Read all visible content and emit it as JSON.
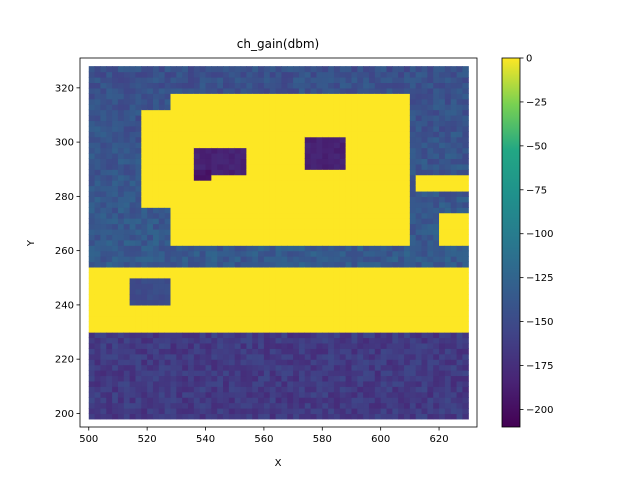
{
  "chart_data": {
    "type": "heatmap",
    "title": "ch_gain(dbm)",
    "xlabel": "X",
    "ylabel": "Y",
    "xlim": [
      497,
      633
    ],
    "ylim": [
      195,
      331
    ],
    "x_ticks": [
      500,
      520,
      540,
      560,
      580,
      600,
      620
    ],
    "y_ticks": [
      200,
      220,
      240,
      260,
      280,
      300,
      320
    ],
    "grid": false,
    "colorbar": {
      "colormap": "viridis",
      "min": -210,
      "max": 0,
      "ticks": [
        0,
        -25,
        -50,
        -75,
        -100,
        -125,
        -150,
        -175,
        -200
      ]
    },
    "grid_extent": {
      "x": [
        501,
        629
      ],
      "y": [
        199,
        327
      ]
    },
    "background_level": -140,
    "background_gradient": {
      "top": -145,
      "middle": -135,
      "bottom": -165
    },
    "regions": [
      {
        "label": "room-left",
        "value": -185,
        "x": [
          537,
          553
        ],
        "y": [
          288,
          298
        ]
      },
      {
        "label": "room-left-tail",
        "value": -195,
        "x": [
          536,
          541
        ],
        "y": [
          286,
          289
        ]
      },
      {
        "label": "room-right",
        "value": -185,
        "x": [
          575,
          588
        ],
        "y": [
          290,
          302
        ]
      },
      {
        "label": "low-pocket",
        "value": -150,
        "x": [
          515,
          527
        ],
        "y": [
          240,
          250
        ]
      }
    ],
    "hot_zones": [
      {
        "label": "building-core",
        "value": 0,
        "x": [
          528,
          610
        ],
        "y": [
          262,
          317
        ]
      },
      {
        "label": "building-left-wing",
        "value": 0,
        "x": [
          519,
          529
        ],
        "y": [
          276,
          312
        ]
      },
      {
        "label": "right-block-upper",
        "value": 0,
        "x": [
          613,
          629
        ],
        "y": [
          282,
          287
        ]
      },
      {
        "label": "right-block-lower",
        "value": 0,
        "x": [
          620,
          629
        ],
        "y": [
          263,
          274
        ]
      },
      {
        "label": "corridor",
        "value": 0,
        "x": [
          501,
          629
        ],
        "y": [
          230,
          253
        ]
      }
    ]
  }
}
